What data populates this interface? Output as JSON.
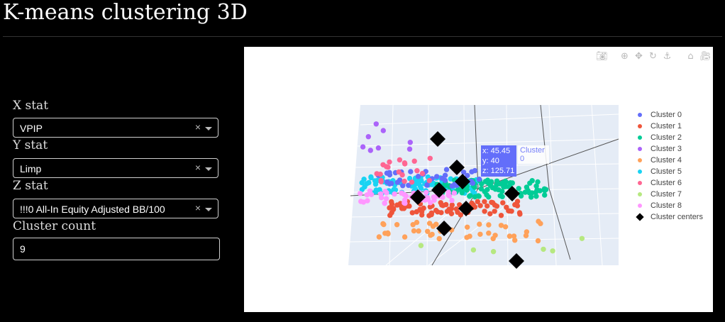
{
  "page": {
    "title": "K-means clustering 3D"
  },
  "controls": {
    "x_stat": {
      "label": "X stat",
      "value": "VPIP",
      "clear": "×"
    },
    "y_stat": {
      "label": "Y stat",
      "value": "Limp",
      "clear": "×"
    },
    "z_stat": {
      "label": "Z stat",
      "value": "!!!0 All-In Equity Adjusted BB/100",
      "clear": "×"
    },
    "cluster_count": {
      "label": "Cluster count",
      "value": "9"
    }
  },
  "modebar": {
    "icons": [
      "camera-icon",
      "zoom-icon",
      "pan-icon",
      "orbit-rotation-icon",
      "turntable-rotation-icon",
      "reset-camera-icon",
      "reset-last-save-icon"
    ]
  },
  "colors": {
    "cluster_0": "#636efa",
    "cluster_1": "#ef553b",
    "cluster_2": "#00cc96",
    "cluster_3": "#ab63fa",
    "cluster_4": "#ffa15a",
    "cluster_5": "#19d3f3",
    "cluster_6": "#ff6692",
    "cluster_7": "#b6e880",
    "cluster_8": "#ff97ff",
    "centers": "#000000"
  },
  "tooltip": {
    "x": "x: 45.45",
    "y": "y: 40",
    "z": "z: 125.71",
    "name": "Cluster 0"
  },
  "chart_data": {
    "type": "scatter",
    "title": "",
    "legend": "right",
    "series": [
      {
        "name": "Cluster 0"
      },
      {
        "name": "Cluster 1"
      },
      {
        "name": "Cluster 2"
      },
      {
        "name": "Cluster 3"
      },
      {
        "name": "Cluster 4"
      },
      {
        "name": "Cluster 5"
      },
      {
        "name": "Cluster 6"
      },
      {
        "name": "Cluster 7"
      },
      {
        "name": "Cluster 8"
      },
      {
        "name": "Cluster centers"
      }
    ]
  }
}
